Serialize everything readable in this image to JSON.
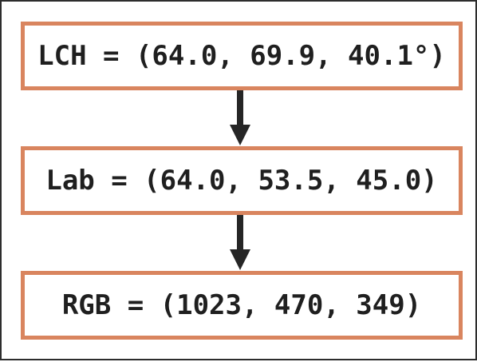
{
  "nodes": [
    {
      "id": "lch",
      "label": "LCH = (64.0, 69.9, 40.1°)"
    },
    {
      "id": "lab",
      "label": "Lab = (64.0, 53.5, 45.0)"
    },
    {
      "id": "rgb",
      "label": "RGB = (1023, 470, 349)"
    }
  ],
  "edges": [
    {
      "from": "lch",
      "to": "lab"
    },
    {
      "from": "lab",
      "to": "rgb"
    }
  ],
  "colors": {
    "box_border": "#d9855f",
    "arrow": "#262626",
    "text": "#1f1f1f",
    "frame": "#2d2d2d",
    "background": "#ffffff"
  }
}
